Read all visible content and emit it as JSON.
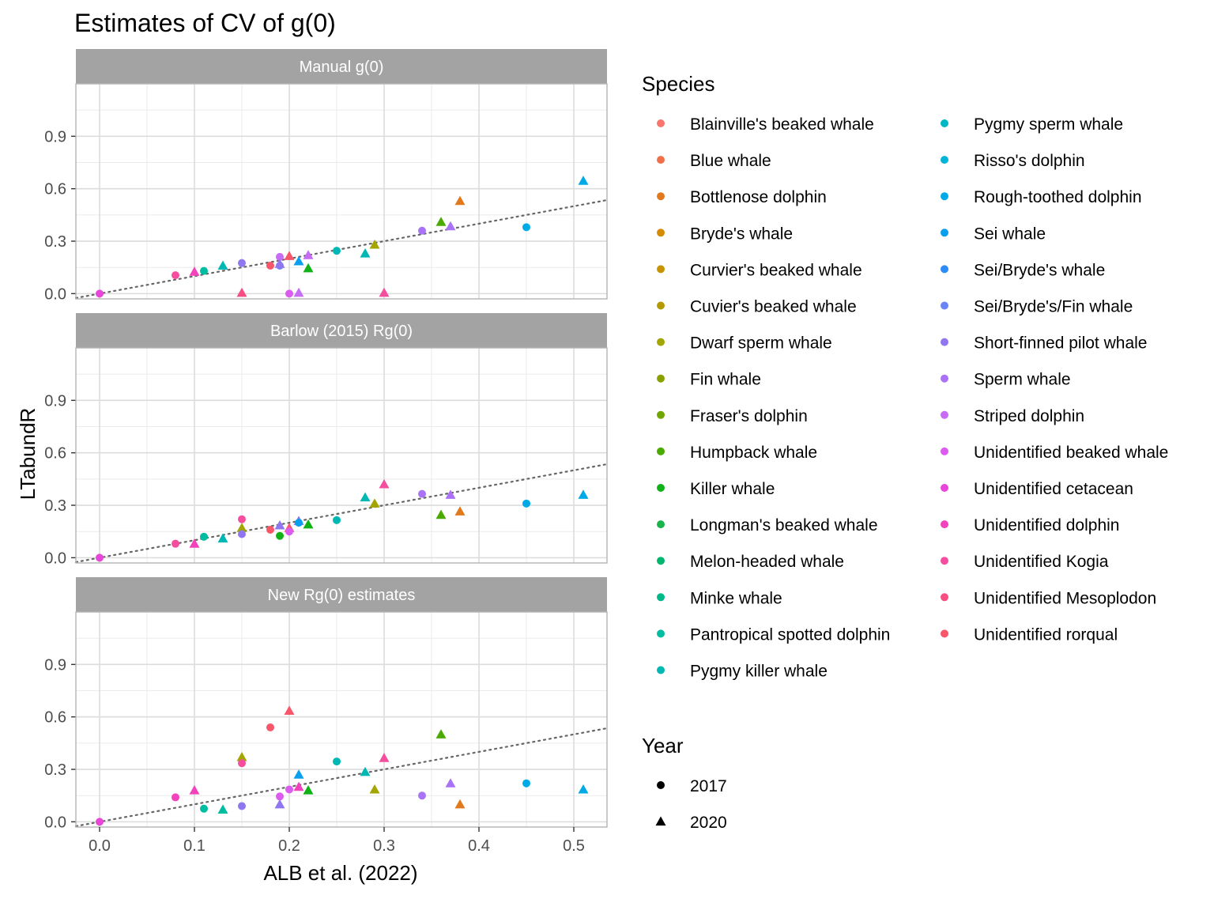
{
  "chart_data": {
    "type": "scatter",
    "title": "Estimates of CV of g(0)",
    "xlabel": "ALB et al. (2022)",
    "ylabel": "LTabundR",
    "xlim": [
      -0.025,
      0.535
    ],
    "ylim": [
      -0.03,
      1.2
    ],
    "x_ticks": [
      0.0,
      0.1,
      0.2,
      0.3,
      0.4,
      0.5
    ],
    "x_tick_labels": [
      "0.0",
      "0.1",
      "0.2",
      "0.3",
      "0.4",
      "0.5"
    ],
    "y_ticks": [
      0.0,
      0.3,
      0.6,
      0.9
    ],
    "y_tick_labels": [
      "0.0",
      "0.3",
      "0.6",
      "0.9"
    ],
    "grid": true,
    "reference_line": "y = x (dotted)",
    "facets": [
      "Manual g(0)",
      "Barlow (2015) Rg(0)",
      "New Rg(0) estimates"
    ],
    "legend_placement": "right",
    "species_legend_title": "Species",
    "species": [
      {
        "name": "Blainville's beaked whale",
        "color": "#F8766D"
      },
      {
        "name": "Blue whale",
        "color": "#F0704C"
      },
      {
        "name": "Bottlenose dolphin",
        "color": "#E07A1C"
      },
      {
        "name": "Bryde's whale",
        "color": "#D58B00"
      },
      {
        "name": "Curvier's beaked whale",
        "color": "#C79300"
      },
      {
        "name": "Cuvier's beaked whale",
        "color": "#B49A00"
      },
      {
        "name": "Dwarf sperm whale",
        "color": "#A3A500"
      },
      {
        "name": "Fin whale",
        "color": "#8A9F00"
      },
      {
        "name": "Fraser's dolphin",
        "color": "#71A600"
      },
      {
        "name": "Humpback whale",
        "color": "#4BAA00"
      },
      {
        "name": "Killer whale",
        "color": "#11B118"
      },
      {
        "name": "Longman's beaked whale",
        "color": "#19B44A"
      },
      {
        "name": "Melon-headed whale",
        "color": "#00B56D"
      },
      {
        "name": "Minke whale",
        "color": "#00B98A"
      },
      {
        "name": "Pantropical spotted dolphin",
        "color": "#00BCA0"
      },
      {
        "name": "Pygmy killer whale",
        "color": "#00B8B3"
      },
      {
        "name": "Pygmy sperm whale",
        "color": "#00B7C4"
      },
      {
        "name": "Risso's dolphin",
        "color": "#00B3D9"
      },
      {
        "name": "Rough-toothed dolphin",
        "color": "#00AAE6"
      },
      {
        "name": "Sei whale",
        "color": "#0A9EEF"
      },
      {
        "name": "Sei/Bryde's whale",
        "color": "#2B8CF7"
      },
      {
        "name": "Sei/Bryde's/Fin whale",
        "color": "#6C84F8"
      },
      {
        "name": "Short-finned pilot whale",
        "color": "#9077F0"
      },
      {
        "name": "Sperm whale",
        "color": "#AA72F7"
      },
      {
        "name": "Striped dolphin",
        "color": "#C76CF5"
      },
      {
        "name": "Unidentified beaked whale",
        "color": "#DB5CEF"
      },
      {
        "name": "Unidentified cetacean",
        "color": "#E846D8"
      },
      {
        "name": "Unidentified dolphin",
        "color": "#F243BD"
      },
      {
        "name": "Unidentified Kogia",
        "color": "#F54E9E"
      },
      {
        "name": "Unidentified Mesoplodon",
        "color": "#F84F83"
      },
      {
        "name": "Unidentified rorqual",
        "color": "#F8566A"
      }
    ],
    "year_legend_title": "Year",
    "years": [
      {
        "label": "2017",
        "shape": "circle"
      },
      {
        "label": "2020",
        "shape": "triangle"
      }
    ],
    "panels": [
      {
        "name": "Manual g(0)",
        "points": [
          {
            "x": 0.0,
            "y": 0.0,
            "s": 26,
            "yr": "2017"
          },
          {
            "x": 0.08,
            "y": 0.105,
            "s": 28,
            "yr": "2017"
          },
          {
            "x": 0.1,
            "y": 0.125,
            "s": 27,
            "yr": "2020"
          },
          {
            "x": 0.11,
            "y": 0.13,
            "s": 14,
            "yr": "2017"
          },
          {
            "x": 0.13,
            "y": 0.16,
            "s": 15,
            "yr": "2020"
          },
          {
            "x": 0.15,
            "y": 0.175,
            "s": 22,
            "yr": "2017"
          },
          {
            "x": 0.15,
            "y": 0.005,
            "s": 29,
            "yr": "2020"
          },
          {
            "x": 0.18,
            "y": 0.16,
            "s": 30,
            "yr": "2017"
          },
          {
            "x": 0.19,
            "y": 0.21,
            "s": 24,
            "yr": "2017"
          },
          {
            "x": 0.19,
            "y": 0.16,
            "s": 21,
            "yr": "2017"
          },
          {
            "x": 0.19,
            "y": 0.17,
            "s": 22,
            "yr": "2020"
          },
          {
            "x": 0.2,
            "y": 0.215,
            "s": 30,
            "yr": "2020"
          },
          {
            "x": 0.2,
            "y": 0.0,
            "s": 25,
            "yr": "2017"
          },
          {
            "x": 0.21,
            "y": 0.185,
            "s": 19,
            "yr": "2020"
          },
          {
            "x": 0.21,
            "y": 0.005,
            "s": 24,
            "yr": "2020"
          },
          {
            "x": 0.22,
            "y": 0.22,
            "s": 24,
            "yr": "2020"
          },
          {
            "x": 0.22,
            "y": 0.145,
            "s": 10,
            "yr": "2020"
          },
          {
            "x": 0.25,
            "y": 0.245,
            "s": 15,
            "yr": "2017"
          },
          {
            "x": 0.28,
            "y": 0.23,
            "s": 15,
            "yr": "2020"
          },
          {
            "x": 0.29,
            "y": 0.28,
            "s": 6,
            "yr": "2020"
          },
          {
            "x": 0.3,
            "y": 0.005,
            "s": 28,
            "yr": "2020"
          },
          {
            "x": 0.34,
            "y": 0.36,
            "s": 23,
            "yr": "2017"
          },
          {
            "x": 0.36,
            "y": 0.41,
            "s": 9,
            "yr": "2020"
          },
          {
            "x": 0.37,
            "y": 0.385,
            "s": 23,
            "yr": "2020"
          },
          {
            "x": 0.38,
            "y": 0.53,
            "s": 2,
            "yr": "2020"
          },
          {
            "x": 0.45,
            "y": 0.38,
            "s": 18,
            "yr": "2017"
          },
          {
            "x": 0.51,
            "y": 0.645,
            "s": 18,
            "yr": "2020"
          }
        ]
      },
      {
        "name": "Barlow (2015) Rg(0)",
        "points": [
          {
            "x": 0.0,
            "y": 0.0,
            "s": 26,
            "yr": "2017"
          },
          {
            "x": 0.08,
            "y": 0.08,
            "s": 28,
            "yr": "2017"
          },
          {
            "x": 0.1,
            "y": 0.08,
            "s": 27,
            "yr": "2020"
          },
          {
            "x": 0.11,
            "y": 0.12,
            "s": 14,
            "yr": "2017"
          },
          {
            "x": 0.13,
            "y": 0.11,
            "s": 15,
            "yr": "2020"
          },
          {
            "x": 0.15,
            "y": 0.22,
            "s": 28,
            "yr": "2017"
          },
          {
            "x": 0.15,
            "y": 0.17,
            "s": 6,
            "yr": "2020"
          },
          {
            "x": 0.15,
            "y": 0.135,
            "s": 22,
            "yr": "2017"
          },
          {
            "x": 0.18,
            "y": 0.16,
            "s": 30,
            "yr": "2017"
          },
          {
            "x": 0.19,
            "y": 0.185,
            "s": 22,
            "yr": "2020"
          },
          {
            "x": 0.19,
            "y": 0.125,
            "s": 10,
            "yr": "2017"
          },
          {
            "x": 0.2,
            "y": 0.17,
            "s": 30,
            "yr": "2020"
          },
          {
            "x": 0.2,
            "y": 0.15,
            "s": 25,
            "yr": "2017"
          },
          {
            "x": 0.21,
            "y": 0.21,
            "s": 22,
            "yr": "2020"
          },
          {
            "x": 0.21,
            "y": 0.2,
            "s": 19,
            "yr": "2017"
          },
          {
            "x": 0.22,
            "y": 0.19,
            "s": 10,
            "yr": "2020"
          },
          {
            "x": 0.25,
            "y": 0.215,
            "s": 15,
            "yr": "2017"
          },
          {
            "x": 0.28,
            "y": 0.345,
            "s": 15,
            "yr": "2020"
          },
          {
            "x": 0.29,
            "y": 0.31,
            "s": 6,
            "yr": "2020"
          },
          {
            "x": 0.3,
            "y": 0.42,
            "s": 28,
            "yr": "2020"
          },
          {
            "x": 0.34,
            "y": 0.365,
            "s": 23,
            "yr": "2017"
          },
          {
            "x": 0.36,
            "y": 0.245,
            "s": 9,
            "yr": "2020"
          },
          {
            "x": 0.37,
            "y": 0.36,
            "s": 23,
            "yr": "2020"
          },
          {
            "x": 0.38,
            "y": 0.265,
            "s": 2,
            "yr": "2020"
          },
          {
            "x": 0.45,
            "y": 0.31,
            "s": 18,
            "yr": "2017"
          },
          {
            "x": 0.51,
            "y": 0.36,
            "s": 18,
            "yr": "2020"
          }
        ]
      },
      {
        "name": "New Rg(0) estimates",
        "points": [
          {
            "x": 0.0,
            "y": 0.0,
            "s": 26,
            "yr": "2017"
          },
          {
            "x": 0.08,
            "y": 0.14,
            "s": 27,
            "yr": "2017"
          },
          {
            "x": 0.1,
            "y": 0.18,
            "s": 27,
            "yr": "2020"
          },
          {
            "x": 0.11,
            "y": 0.075,
            "s": 14,
            "yr": "2017"
          },
          {
            "x": 0.13,
            "y": 0.07,
            "s": 14,
            "yr": "2020"
          },
          {
            "x": 0.15,
            "y": 0.37,
            "s": 6,
            "yr": "2020"
          },
          {
            "x": 0.15,
            "y": 0.335,
            "s": 28,
            "yr": "2017"
          },
          {
            "x": 0.15,
            "y": 0.09,
            "s": 22,
            "yr": "2017"
          },
          {
            "x": 0.18,
            "y": 0.54,
            "s": 30,
            "yr": "2017"
          },
          {
            "x": 0.19,
            "y": 0.145,
            "s": 25,
            "yr": "2017"
          },
          {
            "x": 0.19,
            "y": 0.1,
            "s": 22,
            "yr": "2020"
          },
          {
            "x": 0.2,
            "y": 0.635,
            "s": 30,
            "yr": "2020"
          },
          {
            "x": 0.2,
            "y": 0.185,
            "s": 25,
            "yr": "2017"
          },
          {
            "x": 0.21,
            "y": 0.27,
            "s": 19,
            "yr": "2020"
          },
          {
            "x": 0.21,
            "y": 0.2,
            "s": 27,
            "yr": "2020"
          },
          {
            "x": 0.22,
            "y": 0.18,
            "s": 10,
            "yr": "2020"
          },
          {
            "x": 0.25,
            "y": 0.345,
            "s": 15,
            "yr": "2017"
          },
          {
            "x": 0.28,
            "y": 0.285,
            "s": 15,
            "yr": "2020"
          },
          {
            "x": 0.29,
            "y": 0.185,
            "s": 6,
            "yr": "2020"
          },
          {
            "x": 0.3,
            "y": 0.365,
            "s": 28,
            "yr": "2020"
          },
          {
            "x": 0.34,
            "y": 0.15,
            "s": 23,
            "yr": "2017"
          },
          {
            "x": 0.36,
            "y": 0.5,
            "s": 9,
            "yr": "2020"
          },
          {
            "x": 0.37,
            "y": 0.22,
            "s": 23,
            "yr": "2020"
          },
          {
            "x": 0.38,
            "y": 0.1,
            "s": 2,
            "yr": "2020"
          },
          {
            "x": 0.45,
            "y": 0.22,
            "s": 18,
            "yr": "2017"
          },
          {
            "x": 0.51,
            "y": 0.185,
            "s": 18,
            "yr": "2020"
          }
        ]
      }
    ]
  }
}
